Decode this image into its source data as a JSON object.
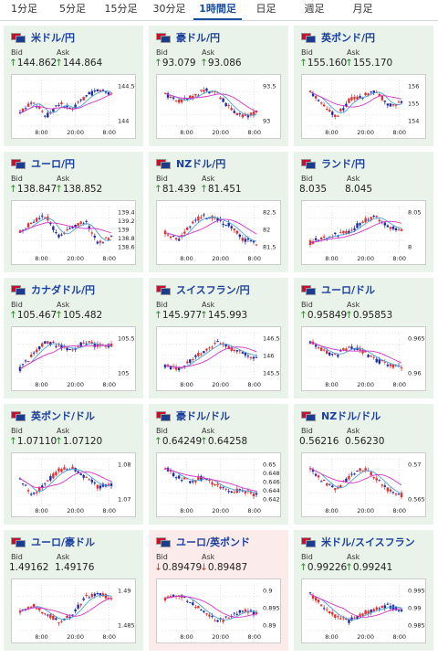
{
  "tabs": [
    "1分足",
    "5分足",
    "15分足",
    "30分足",
    "1時間足",
    "日足",
    "週足",
    "月足"
  ],
  "active_tab": 4,
  "labels": {
    "bid": "Bid",
    "ask": "Ask"
  },
  "colors": {
    "up_bg": "#eaf3ea",
    "down_bg": "#fbeceb",
    "link": "#1a3fa0",
    "up": "#2a8a2a",
    "down": "#c0392b",
    "candle_up": "#e03030",
    "candle_down": "#1a2aa8",
    "ma": "#d633c8",
    "ma2": "#4aa0d8"
  },
  "pairs": [
    {
      "name": "米ドル/円",
      "flag": "us-jp-flag-icon",
      "dir": "up",
      "bid": "144.862",
      "ask": "144.864",
      "y_ticks": [
        "144.5",
        "144"
      ],
      "x_ticks": [
        "8:00",
        "20:00",
        "8:00"
      ],
      "trend": [
        144.2,
        144.6,
        144.1,
        144.5,
        144.3,
        144.7,
        144.9,
        144.8
      ]
    },
    {
      "name": "豪ドル/円",
      "flag": "au-jp-flag-icon",
      "dir": "up",
      "bid": "93.079",
      "ask": "93.086",
      "y_ticks": [
        "93.5",
        "93"
      ],
      "x_ticks": [
        "8:00",
        "20:00",
        "8:00"
      ],
      "trend": [
        93.6,
        93.4,
        93.5,
        93.7,
        93.6,
        93.2,
        93.0,
        93.1
      ]
    },
    {
      "name": "英ポンド/円",
      "flag": "gb-jp-flag-icon",
      "dir": "up",
      "bid": "155.160",
      "ask": "155.170",
      "y_ticks": [
        "156",
        "155",
        "154"
      ],
      "x_ticks": [
        "8:00",
        "20:00",
        "8:00"
      ],
      "trend": [
        155.8,
        155.2,
        154.6,
        155.4,
        155.6,
        155.9,
        155.1,
        155.3
      ]
    },
    {
      "name": "ユーロ/円",
      "flag": "eu-jp-flag-icon",
      "dir": "up",
      "bid": "138.847",
      "ask": "138.852",
      "y_ticks": [
        "139.4",
        "139.2",
        "139",
        "138.8",
        "138.6"
      ],
      "x_ticks": [
        "8:00",
        "20:00",
        "8:00"
      ],
      "trend": [
        139.0,
        139.2,
        139.3,
        138.9,
        139.1,
        139.2,
        138.8,
        138.9
      ]
    },
    {
      "name": "NZドル/円",
      "flag": "nz-jp-flag-icon",
      "dir": "up",
      "bid": "81.439",
      "ask": "81.451",
      "y_ticks": [
        "82.5",
        "82",
        "81.5"
      ],
      "x_ticks": [
        "8:00",
        "20:00",
        "8:00"
      ],
      "trend": [
        81.8,
        81.6,
        82.1,
        82.3,
        82.2,
        82.0,
        81.6,
        81.5
      ]
    },
    {
      "name": "ランド/円",
      "flag": "za-jp-flag-icon",
      "dir": "none",
      "bid": "8.035",
      "ask": "8.045",
      "y_ticks": [
        "8.05",
        "8"
      ],
      "x_ticks": [
        "8:00",
        "20:00",
        "8:00"
      ],
      "trend": [
        7.98,
        8.0,
        8.01,
        8.02,
        8.06,
        8.08,
        8.04,
        8.03
      ]
    },
    {
      "name": "カナダドル/円",
      "flag": "ca-jp-flag-icon",
      "dir": "up",
      "bid": "105.467",
      "ask": "105.482",
      "y_ticks": [
        "105.5",
        "105"
      ],
      "x_ticks": [
        "8:00",
        "20:00",
        "8:00"
      ],
      "trend": [
        104.9,
        105.3,
        105.6,
        105.5,
        105.4,
        105.6,
        105.5,
        105.5
      ]
    },
    {
      "name": "スイスフラン/円",
      "flag": "ch-jp-flag-icon",
      "dir": "up",
      "bid": "145.977",
      "ask": "145.993",
      "y_ticks": [
        "146.5",
        "146",
        "145.5"
      ],
      "x_ticks": [
        "8:00",
        "20:00",
        "8:00"
      ],
      "trend": [
        145.6,
        145.5,
        145.8,
        146.1,
        146.4,
        146.2,
        146.0,
        145.9
      ]
    },
    {
      "name": "ユーロ/ドル",
      "flag": "eu-us-flag-icon",
      "dir": "up",
      "bid": "0.95849",
      "ask": "0.95853",
      "y_ticks": [
        "0.965",
        "0.96"
      ],
      "x_ticks": [
        "8:00",
        "20:00",
        "8:00"
      ],
      "trend": [
        0.964,
        0.962,
        0.961,
        0.963,
        0.962,
        0.96,
        0.959,
        0.958
      ]
    },
    {
      "name": "英ポンド/ドル",
      "flag": "gb-us-flag-icon",
      "dir": "up",
      "bid": "1.07110",
      "ask": "1.07120",
      "y_ticks": [
        "1.08",
        "1.07"
      ],
      "x_ticks": [
        "8:00",
        "20:00",
        "8:00"
      ],
      "trend": [
        1.074,
        1.066,
        1.072,
        1.078,
        1.079,
        1.075,
        1.07,
        1.071
      ]
    },
    {
      "name": "豪ドル/ドル",
      "flag": "au-us-flag-icon",
      "dir": "up",
      "bid": "0.64249",
      "ask": "0.64258",
      "y_ticks": [
        "0.65",
        "0.648",
        "0.646",
        "0.644",
        "0.642"
      ],
      "x_ticks": [
        "8:00",
        "20:00",
        "8:00"
      ],
      "trend": [
        0.648,
        0.646,
        0.645,
        0.646,
        0.644,
        0.643,
        0.643,
        0.642
      ]
    },
    {
      "name": "NZドル/ドル",
      "flag": "nz-us-flag-icon",
      "dir": "none",
      "bid": "0.56216",
      "ask": "0.56230",
      "y_ticks": [
        "0.57",
        "0.565"
      ],
      "x_ticks": [
        "8:00",
        "20:00",
        "8:00"
      ],
      "trend": [
        0.568,
        0.565,
        0.563,
        0.566,
        0.568,
        0.566,
        0.563,
        0.562
      ]
    },
    {
      "name": "ユーロ/豪ドル",
      "flag": "eu-au-flag-icon",
      "dir": "none",
      "bid": "1.49162",
      "ask": "1.49176",
      "y_ticks": [
        "1.49",
        "1.485"
      ],
      "x_ticks": [
        "8:00",
        "20:00",
        "8:00"
      ],
      "trend": [
        1.487,
        1.489,
        1.486,
        1.484,
        1.486,
        1.491,
        1.492,
        1.491
      ]
    },
    {
      "name": "ユーロ/英ポンド",
      "flag": "eu-gb-flag-icon",
      "dir": "down",
      "bid": "0.89479",
      "ask": "0.89487",
      "y_ticks": [
        "0.9",
        "0.895",
        "0.89"
      ],
      "x_ticks": [
        "8:00",
        "20:00",
        "8:00"
      ],
      "trend": [
        0.898,
        0.899,
        0.897,
        0.894,
        0.892,
        0.893,
        0.895,
        0.894
      ]
    },
    {
      "name": "米ドル/スイスフラン",
      "flag": "us-ch-flag-icon",
      "dir": "up",
      "bid": "0.99226",
      "ask": "0.99241",
      "y_ticks": [
        "0.995",
        "0.99",
        "0.985"
      ],
      "x_ticks": [
        "8:00",
        "20:00",
        "8:00"
      ],
      "trend": [
        0.996,
        0.993,
        0.99,
        0.989,
        0.991,
        0.992,
        0.993,
        0.992
      ]
    }
  ]
}
